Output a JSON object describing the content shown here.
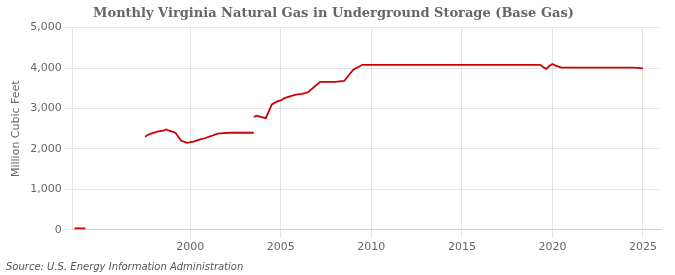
{
  "chart_data": {
    "type": "line",
    "title": "Monthly Virginia Natural Gas in Underground Storage (Base Gas)",
    "ylabel": "Million Cubic Feet",
    "annotation": "Source: U.S. Energy Information Administration",
    "color": "#cc0000",
    "x": [
      1993.6,
      1994.2,
      1994.2,
      1997.5,
      1997.67,
      1997.83,
      1998.17,
      1998.5,
      1998.67,
      1998.83,
      1999.17,
      1999.5,
      1999.83,
      2000.17,
      2000.5,
      2000.83,
      2001.17,
      2001.5,
      2001.83,
      2002.17,
      2003.5,
      2003.5,
      2003.5,
      2003.67,
      2003.83,
      2004.17,
      2004.5,
      2004.83,
      2005.0,
      2005.17,
      2005.5,
      2005.83,
      2006.17,
      2006.5,
      2007.17,
      2008.0,
      2008.5,
      2009.0,
      2009.5,
      2019.33,
      2019.5,
      2019.67,
      2019.83,
      2020.0,
      2020.17,
      2020.5,
      2024.5,
      2025.0
    ],
    "values": [
      35,
      35,
      null,
      2300,
      2350,
      2380,
      2430,
      2450,
      2480,
      2450,
      2400,
      2200,
      2150,
      2180,
      2230,
      2270,
      2320,
      2380,
      2390,
      2400,
      2400,
      null,
      2790,
      2820,
      2800,
      2760,
      3100,
      3180,
      3200,
      3250,
      3300,
      3340,
      3360,
      3400,
      3660,
      3660,
      3680,
      3960,
      4080,
      4080,
      4020,
      3980,
      4050,
      4100,
      4060,
      4010,
      4010,
      3990
    ],
    "xlim": [
      1993.5,
      2026
    ],
    "xticks": [
      2000,
      2005,
      2010,
      2015,
      2020,
      2025
    ],
    "ylim": [
      0,
      5000
    ],
    "yticks": [
      0,
      {
        "value": 1000,
        "label": "1,000"
      },
      {
        "value": 2000,
        "label": "2,000"
      },
      {
        "value": 3000,
        "label": "3,000"
      },
      {
        "value": 4000,
        "label": "4,000"
      },
      {
        "value": 5000,
        "label": "5,000"
      }
    ],
    "grid": true
  }
}
